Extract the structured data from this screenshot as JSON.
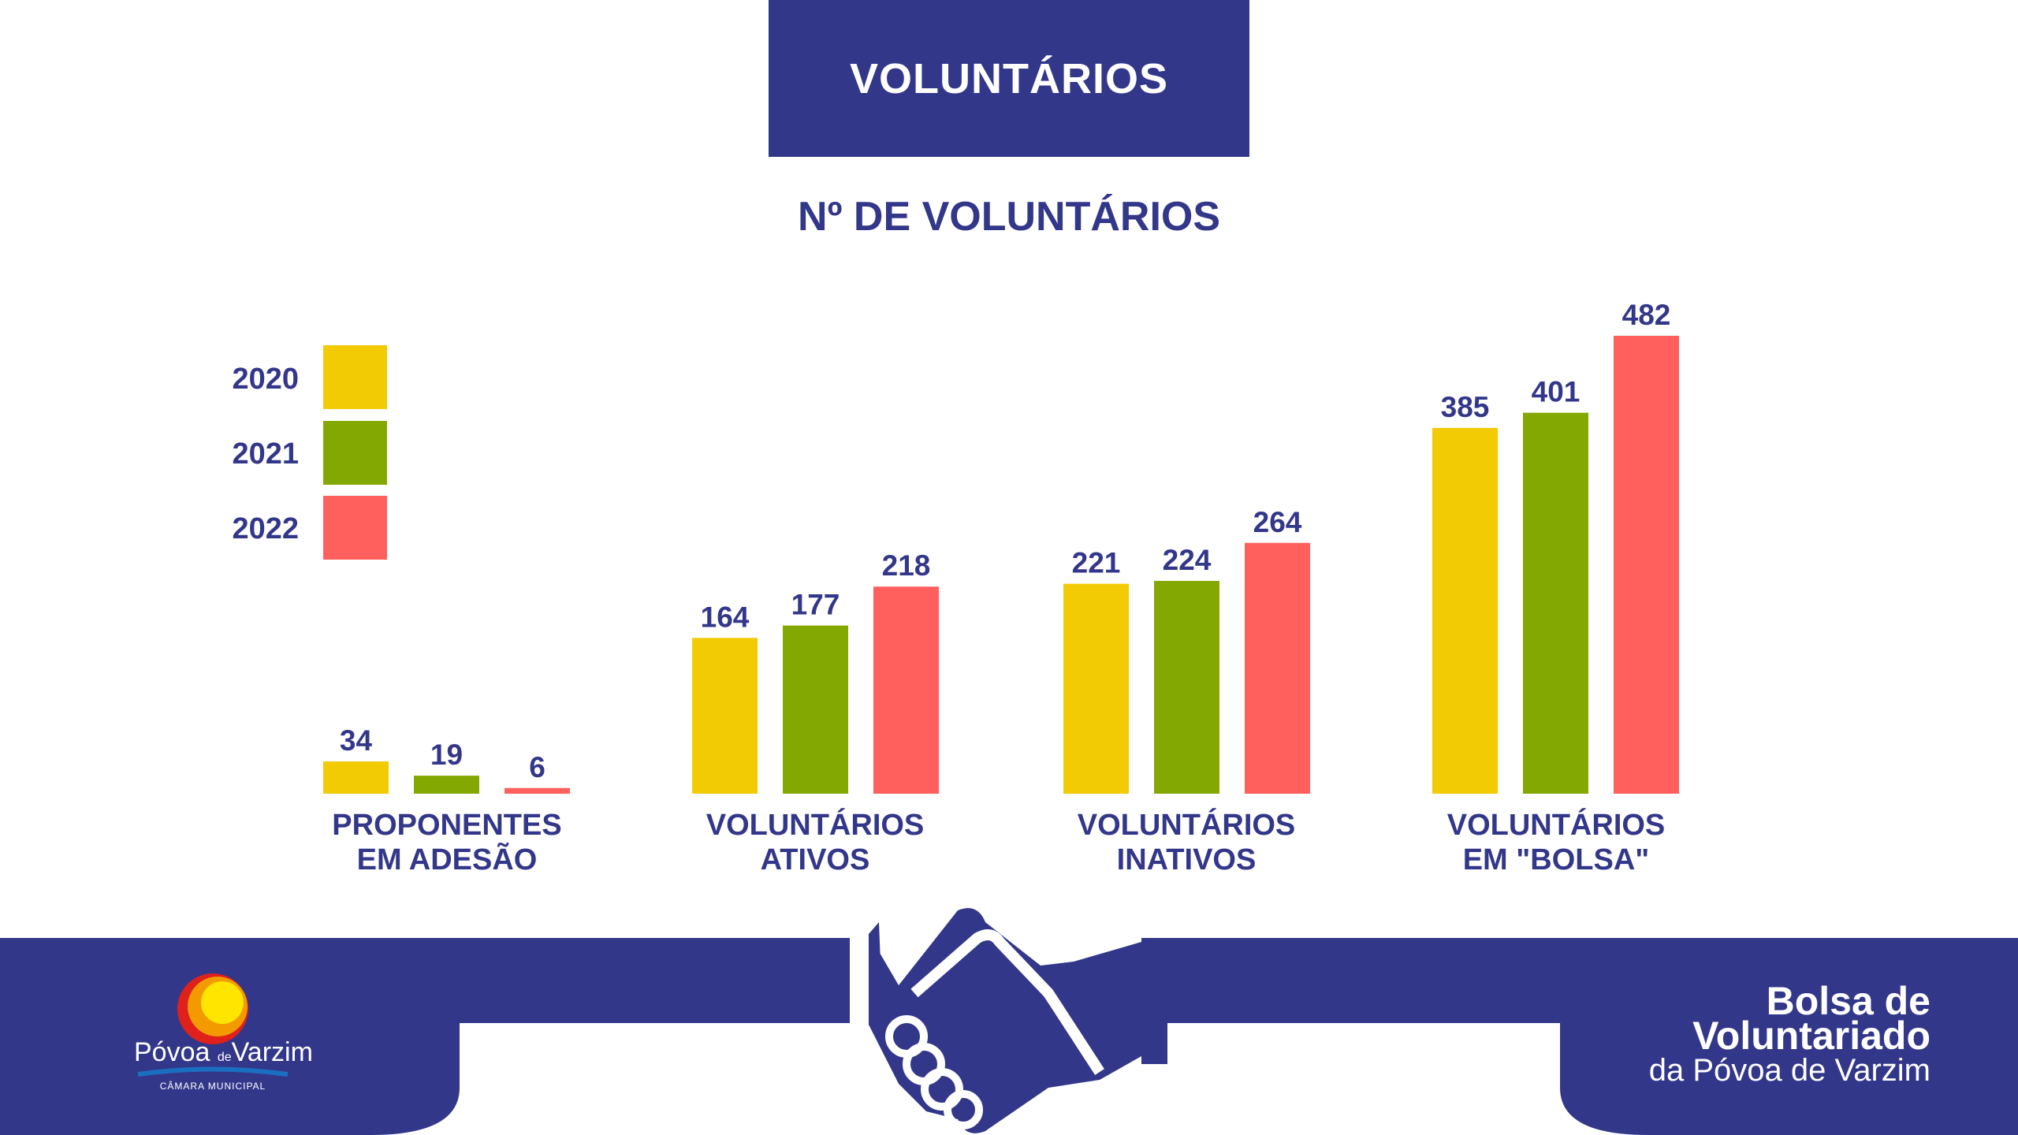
{
  "header": {
    "title": "VOLUNTÁRIOS"
  },
  "chart_data": {
    "type": "bar",
    "title": "Nº DE VOLUNTÁRIOS",
    "categories": [
      [
        "PROPONENTES",
        "EM ADESÃO"
      ],
      [
        "VOLUNTÁRIOS",
        "ATIVOS"
      ],
      [
        "VOLUNTÁRIOS",
        "INATIVOS"
      ],
      [
        "VOLUNTÁRIOS",
        "EM \"BOLSA\""
      ]
    ],
    "series": [
      {
        "name": "2020",
        "color": "#f2cb05",
        "values": [
          34,
          164,
          221,
          385
        ]
      },
      {
        "name": "2021",
        "color": "#84a802",
        "values": [
          19,
          177,
          224,
          401
        ]
      },
      {
        "name": "2022",
        "color": "#ff605e",
        "values": [
          6,
          218,
          264,
          482
        ]
      }
    ],
    "legend": "left",
    "grid": false,
    "ylim": [
      0,
      482
    ]
  },
  "footer": {
    "logo": {
      "name": "Póvoa",
      "connector": "de",
      "name2": "Varzim",
      "sub": "CÂMARA MUNICIPAL"
    },
    "brand": {
      "line1": "Bolsa de",
      "line2": "Voluntariado",
      "line3": "da Póvoa de Varzim"
    },
    "icon": "handshake-icon",
    "colors": {
      "primary": "#33378a"
    }
  }
}
